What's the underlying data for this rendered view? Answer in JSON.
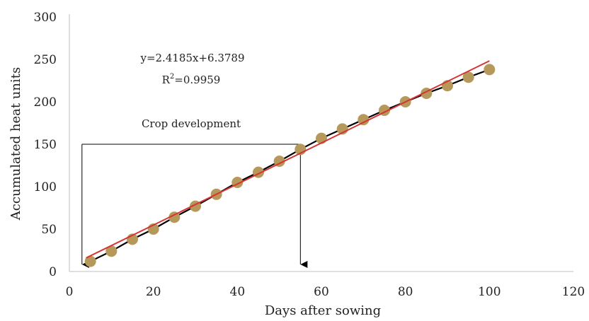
{
  "chart_data": {
    "type": "scatter",
    "title": "",
    "xlabel": "Days after sowing",
    "ylabel": "Accumulated heat units",
    "xlim": [
      0,
      120
    ],
    "ylim": [
      0,
      300
    ],
    "xticks": [
      0,
      20,
      40,
      60,
      80,
      100,
      120
    ],
    "yticks": [
      0,
      50,
      100,
      150,
      200,
      250,
      300
    ],
    "grid": false,
    "legend": "none",
    "series": [
      {
        "x": [
          5,
          10,
          15,
          20,
          25,
          30,
          35,
          40,
          45,
          50,
          55,
          60,
          65,
          70,
          75,
          80,
          85,
          90,
          95,
          100
        ],
        "y": [
          12,
          24,
          38,
          50,
          64,
          77,
          91,
          105,
          117,
          130,
          144,
          157,
          168,
          179,
          190,
          200,
          210,
          219,
          229,
          238
        ],
        "marker_color": "#b5985a",
        "line_color": "#000000"
      }
    ],
    "trendline": {
      "slope": 2.4185,
      "intercept": 6.3789,
      "x_range": [
        4,
        100
      ],
      "color": "#d63333"
    },
    "annotations": {
      "equation": "y=2.4185x+6.3789",
      "r_squared_prefix": "R",
      "r_squared_sup": "2",
      "r_squared_suffix": "=0.9959",
      "crop_label": "Crop development"
    },
    "bracket": {
      "x_start": 3,
      "x_end": 55,
      "y_level": 150,
      "arrow_to_y": 0
    }
  }
}
